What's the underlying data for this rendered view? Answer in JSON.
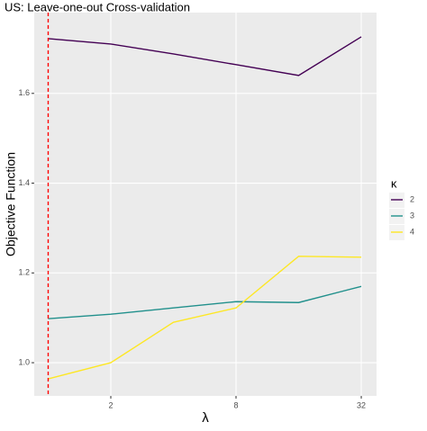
{
  "chart_data": {
    "type": "line",
    "title": "US: Leave-one-out Cross-validation",
    "x_label": "λ",
    "y_label": "Objective Function",
    "x": [
      1,
      2,
      4,
      8,
      16,
      32
    ],
    "x_log2": true,
    "series": [
      {
        "name": "2",
        "color": "#440154",
        "values": [
          1.722,
          1.71,
          1.688,
          1.664,
          1.64,
          1.726
        ]
      },
      {
        "name": "3",
        "color": "#21908C",
        "values": [
          1.098,
          1.108,
          1.122,
          1.136,
          1.134,
          1.17
        ]
      },
      {
        "name": "4",
        "color": "#FDE725",
        "values": [
          0.964,
          1.0,
          1.09,
          1.122,
          1.237,
          1.235
        ]
      }
    ],
    "legend_title": "κ",
    "legend_position": "right",
    "xlim": [
      0.857,
      37.9
    ],
    "xticks": [
      2,
      8,
      32
    ],
    "ylim": [
      0.926,
      1.78
    ],
    "yticks": [
      {
        "value": 1.0,
        "label": "1.0"
      },
      1.2,
      1.4,
      1.6
    ],
    "grid": true,
    "vline": {
      "x": 1,
      "color": "#ff0000",
      "dashed": true
    }
  }
}
